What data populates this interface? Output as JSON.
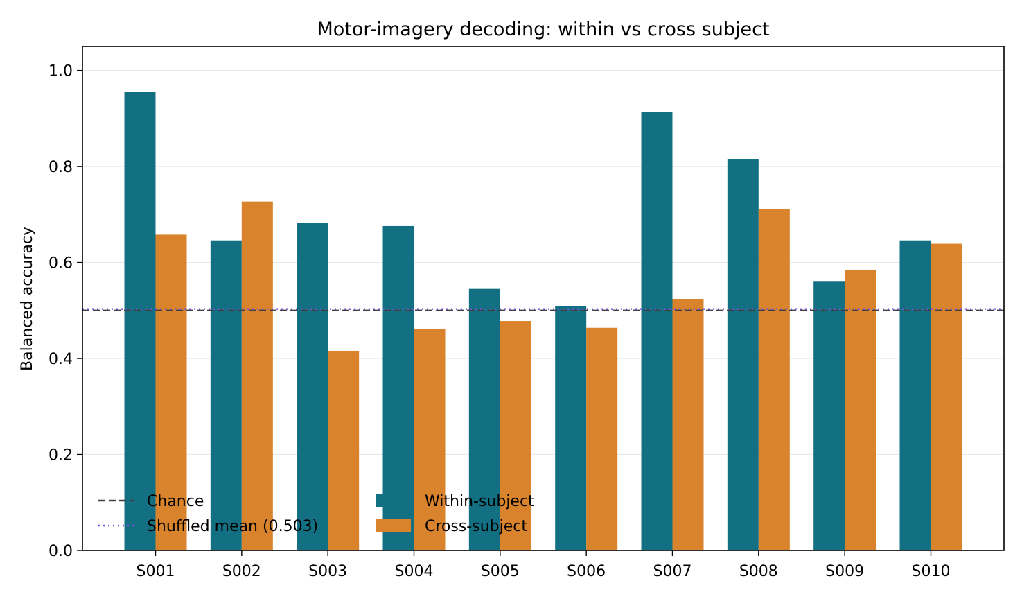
{
  "chart_data": {
    "type": "bar",
    "title": "Motor-imagery decoding: within vs cross subject",
    "xlabel": "",
    "ylabel": "Balanced accuracy",
    "ylim": [
      0,
      1.05
    ],
    "yticks": [
      0.0,
      0.2,
      0.4,
      0.6,
      0.8,
      1.0
    ],
    "ytick_labels": [
      "0.0",
      "0.2",
      "0.4",
      "0.6",
      "0.8",
      "1.0"
    ],
    "grid": "horizontal",
    "categories": [
      "S001",
      "S002",
      "S003",
      "S004",
      "S005",
      "S006",
      "S007",
      "S008",
      "S009",
      "S010"
    ],
    "series": [
      {
        "name": "Within-subject",
        "color": "#137083",
        "values": [
          0.955,
          0.646,
          0.682,
          0.676,
          0.545,
          0.509,
          0.913,
          0.815,
          0.56,
          0.646
        ]
      },
      {
        "name": "Cross-subject",
        "color": "#d9832d",
        "values": [
          0.658,
          0.727,
          0.416,
          0.462,
          0.478,
          0.464,
          0.523,
          0.711,
          0.585,
          0.639
        ]
      }
    ],
    "reference_lines": [
      {
        "name": "Chance",
        "value": 0.5,
        "style": "dashed",
        "color": "#404040"
      },
      {
        "name": "Shuffled mean (0.503)",
        "value": 0.503,
        "style": "dotted",
        "color": "#7b52e0"
      }
    ],
    "legend_position": "lower-left"
  }
}
